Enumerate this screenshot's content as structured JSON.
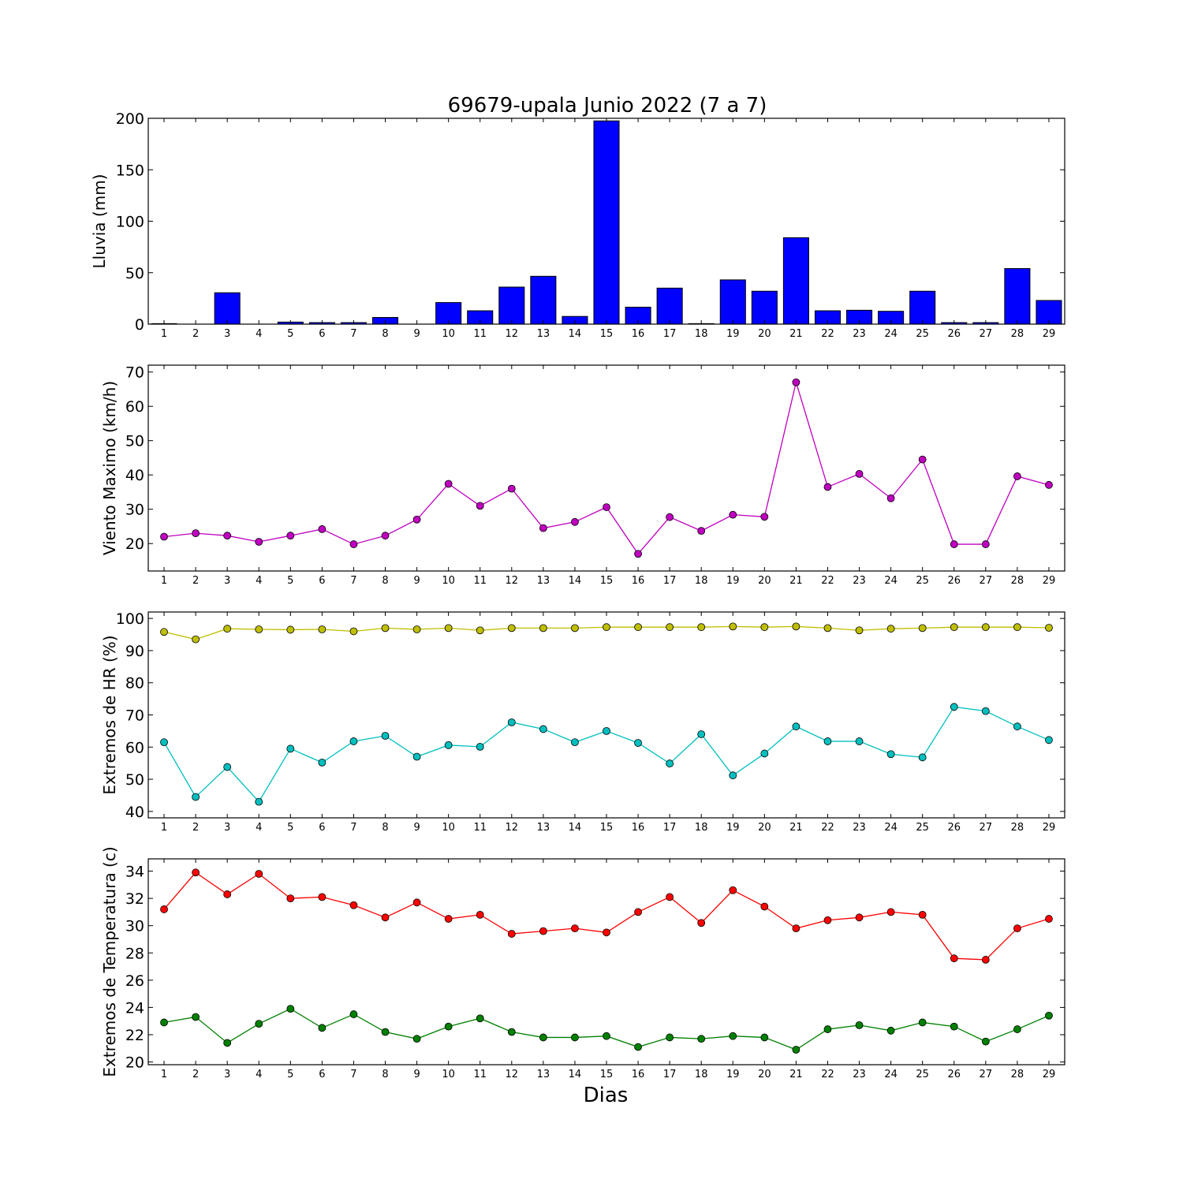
{
  "title": "69679-upala Junio 2022  (7 a 7)",
  "xlabel": "Dias",
  "chart_data": [
    {
      "type": "bar",
      "ylabel": "Lluvia (mm)",
      "ylim": [
        0,
        200
      ],
      "yticks": [
        0,
        50,
        100,
        150,
        200
      ],
      "categories": [
        1,
        2,
        3,
        4,
        5,
        6,
        7,
        8,
        9,
        10,
        11,
        12,
        13,
        14,
        15,
        16,
        17,
        18,
        19,
        20,
        21,
        22,
        23,
        24,
        25,
        26,
        27,
        28,
        29
      ],
      "series": [
        {
          "color": "#0000ff",
          "values": [
            0.5,
            0,
            30.5,
            0,
            2,
            1.5,
            1.5,
            6.5,
            0,
            21,
            13,
            36,
            46.5,
            7.5,
            197.5,
            16.5,
            35,
            0.5,
            43,
            32,
            84,
            13,
            13.5,
            12.5,
            32,
            1.5,
            1.5,
            54,
            23
          ]
        }
      ]
    },
    {
      "type": "line",
      "ylabel": "Viento Maximo (km/h)",
      "ylim": [
        12,
        72
      ],
      "yticks": [
        20,
        30,
        40,
        50,
        60,
        70
      ],
      "categories": [
        1,
        2,
        3,
        4,
        5,
        6,
        7,
        8,
        9,
        10,
        11,
        12,
        13,
        14,
        15,
        16,
        17,
        18,
        19,
        20,
        21,
        22,
        23,
        24,
        25,
        26,
        27,
        28,
        29
      ],
      "series": [
        {
          "color": "#bf00bf",
          "values": [
            22,
            23,
            22.3,
            20.5,
            22.3,
            24.2,
            19.8,
            22.3,
            27,
            37.4,
            31,
            36,
            24.5,
            26.3,
            30.6,
            17,
            27.7,
            23.7,
            28.4,
            27.8,
            67,
            36.5,
            40.3,
            33.2,
            44.5,
            19.8,
            19.8,
            39.6,
            37.1
          ]
        }
      ]
    },
    {
      "type": "line",
      "ylabel": "Extremos de HR (%)",
      "ylim": [
        38,
        102
      ],
      "yticks": [
        40,
        50,
        60,
        70,
        80,
        90,
        100
      ],
      "categories": [
        1,
        2,
        3,
        4,
        5,
        6,
        7,
        8,
        9,
        10,
        11,
        12,
        13,
        14,
        15,
        16,
        17,
        18,
        19,
        20,
        21,
        22,
        23,
        24,
        25,
        26,
        27,
        28,
        29
      ],
      "series": [
        {
          "color": "#bfbf00",
          "values": [
            95.8,
            93.5,
            96.8,
            96.6,
            96.5,
            96.6,
            96,
            97,
            96.6,
            97,
            96.3,
            97,
            97,
            97,
            97.3,
            97.3,
            97.3,
            97.3,
            97.5,
            97.3,
            97.5,
            97,
            96.3,
            96.8,
            97,
            97.3,
            97.3,
            97.3,
            97.1
          ]
        },
        {
          "color": "#00bfbf",
          "values": [
            61.5,
            44.5,
            53.8,
            43,
            59.5,
            55.2,
            61.8,
            63.5,
            57,
            60.6,
            60.1,
            67.7,
            65.6,
            61.5,
            65,
            61.3,
            54.9,
            64,
            51.2,
            58,
            66.4,
            61.8,
            61.8,
            57.8,
            56.8,
            72.5,
            71.2,
            66.4,
            62.2
          ]
        }
      ]
    },
    {
      "type": "line",
      "ylabel": "Extremos de Temperatura (c)",
      "ylim": [
        19.8,
        34.9
      ],
      "yticks": [
        20,
        22,
        24,
        26,
        28,
        30,
        32,
        34
      ],
      "categories": [
        1,
        2,
        3,
        4,
        5,
        6,
        7,
        8,
        9,
        10,
        11,
        12,
        13,
        14,
        15,
        16,
        17,
        18,
        19,
        20,
        21,
        22,
        23,
        24,
        25,
        26,
        27,
        28,
        29
      ],
      "series": [
        {
          "color": "#ff0000",
          "values": [
            31.2,
            33.9,
            32.3,
            33.8,
            32,
            32.1,
            31.5,
            30.6,
            31.7,
            30.5,
            30.8,
            29.4,
            29.6,
            29.8,
            29.5,
            31,
            32.1,
            30.2,
            32.6,
            31.4,
            29.8,
            30.4,
            30.6,
            31,
            30.8,
            27.6,
            27.5,
            29.8,
            30.5
          ]
        },
        {
          "color": "#008000",
          "values": [
            22.9,
            23.3,
            21.4,
            22.8,
            23.9,
            22.5,
            23.5,
            22.2,
            21.7,
            22.6,
            23.2,
            22.2,
            21.8,
            21.8,
            21.9,
            21.1,
            21.8,
            21.7,
            21.9,
            21.8,
            20.9,
            22.4,
            22.7,
            22.3,
            22.9,
            22.6,
            21.5,
            22.4,
            23.4
          ]
        }
      ]
    }
  ]
}
